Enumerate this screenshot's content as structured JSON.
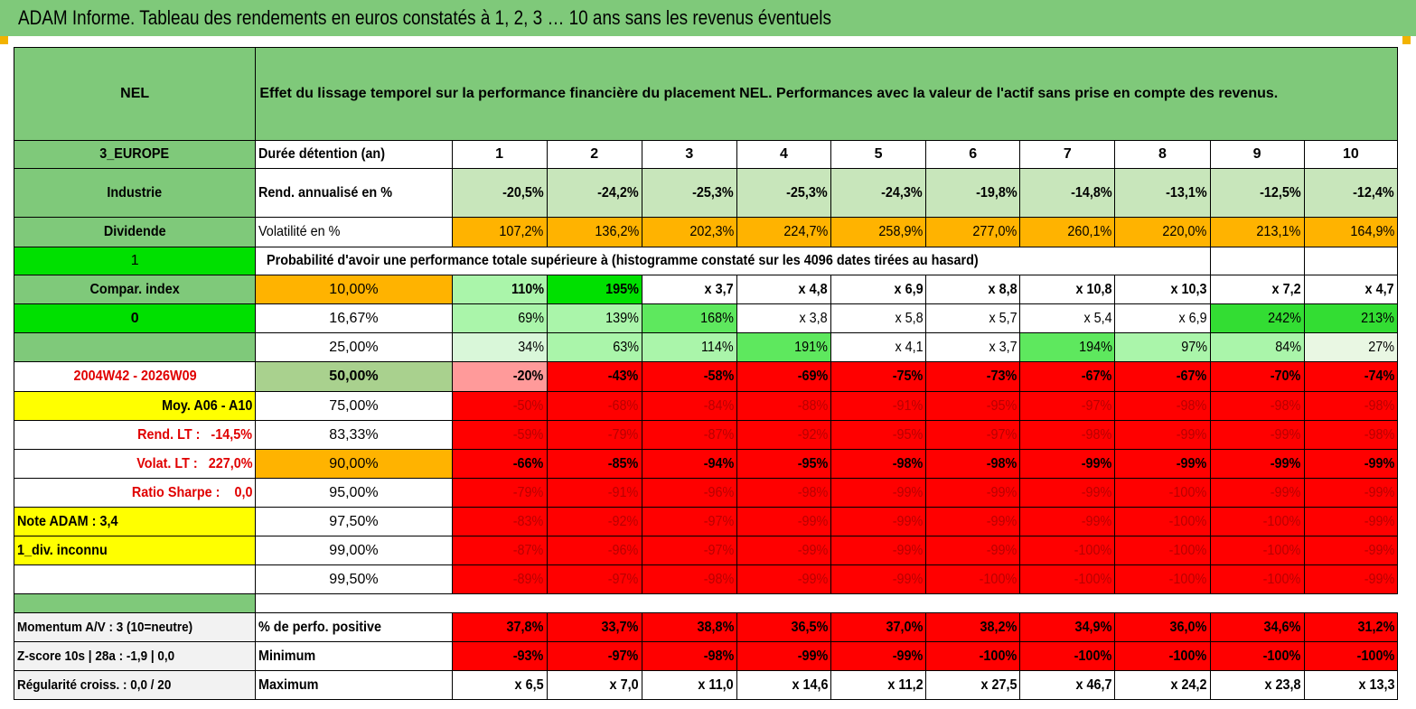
{
  "title": "ADAM Informe. Tableau des rendements en euros constatés à 1, 2, 3 … 10 ans sans les revenus éventuels",
  "header": {
    "code": "NEL",
    "description": "Effet du lissage temporel sur la performance financière du placement NEL. Performances avec la valeur de l'actif sans prise en compte des revenus."
  },
  "side": {
    "region": "3_EUROPE",
    "sector": "Industrie",
    "type": "Dividende",
    "flag1": "1",
    "compar": "Compar. index",
    "flag0": "0",
    "period": "2004W42 - 2026W09",
    "moy": "Moy. A06 - A10",
    "rend_lt": "Rend. LT :   -14,5%",
    "volat_lt": "Volat. LT :   227,0%",
    "sharpe": "Ratio Sharpe :    0,0",
    "note": "Note ADAM : 3,4",
    "div": "1_div. inconnu"
  },
  "labels": {
    "duree": "Durée détention (an)",
    "rend": "Rend. annualisé en %",
    "vol": "Volatilité en %",
    "proba": "Probabilité d'avoir une performance totale supérieure à (histogramme constaté sur les 4096 dates tirées au hasard)"
  },
  "years": [
    "1",
    "2",
    "3",
    "4",
    "5",
    "6",
    "7",
    "8",
    "9",
    "10"
  ],
  "rend": [
    "-20,5%",
    "-24,2%",
    "-25,3%",
    "-25,3%",
    "-24,3%",
    "-19,8%",
    "-14,8%",
    "-13,1%",
    "-12,5%",
    "-12,4%"
  ],
  "vol": [
    "107,2%",
    "136,2%",
    "202,3%",
    "224,7%",
    "258,9%",
    "277,0%",
    "260,1%",
    "220,0%",
    "213,1%",
    "164,9%"
  ],
  "pct_rows": [
    {
      "p": "10,00%",
      "v": [
        "110%",
        "195%",
        "x 3,7",
        "x 4,8",
        "x 6,9",
        "x 8,8",
        "x 10,8",
        "x 10,3",
        "x 7,2",
        "x 4,7"
      ]
    },
    {
      "p": "16,67%",
      "v": [
        "69%",
        "139%",
        "168%",
        "x 3,8",
        "x 5,8",
        "x 5,7",
        "x 5,4",
        "x 6,9",
        "242%",
        "213%"
      ]
    },
    {
      "p": "25,00%",
      "v": [
        "34%",
        "63%",
        "114%",
        "191%",
        "x 4,1",
        "x 3,7",
        "194%",
        "97%",
        "84%",
        "27%"
      ]
    },
    {
      "p": "50,00%",
      "v": [
        "-20%",
        "-43%",
        "-58%",
        "-69%",
        "-75%",
        "-73%",
        "-67%",
        "-67%",
        "-70%",
        "-74%"
      ]
    },
    {
      "p": "75,00%",
      "v": [
        "-50%",
        "-68%",
        "-84%",
        "-88%",
        "-91%",
        "-95%",
        "-97%",
        "-98%",
        "-98%",
        "-98%"
      ]
    },
    {
      "p": "83,33%",
      "v": [
        "-59%",
        "-79%",
        "-87%",
        "-92%",
        "-95%",
        "-97%",
        "-98%",
        "-99%",
        "-99%",
        "-98%"
      ]
    },
    {
      "p": "90,00%",
      "v": [
        "-66%",
        "-85%",
        "-94%",
        "-95%",
        "-98%",
        "-98%",
        "-99%",
        "-99%",
        "-99%",
        "-99%"
      ]
    },
    {
      "p": "95,00%",
      "v": [
        "-79%",
        "-91%",
        "-96%",
        "-98%",
        "-99%",
        "-99%",
        "-99%",
        "-100%",
        "-99%",
        "-99%"
      ]
    },
    {
      "p": "97,50%",
      "v": [
        "-83%",
        "-92%",
        "-97%",
        "-99%",
        "-99%",
        "-99%",
        "-99%",
        "-100%",
        "-100%",
        "-99%"
      ]
    },
    {
      "p": "99,00%",
      "v": [
        "-87%",
        "-96%",
        "-97%",
        "-99%",
        "-99%",
        "-99%",
        "-100%",
        "-100%",
        "-100%",
        "-99%"
      ]
    },
    {
      "p": "99,50%",
      "v": [
        "-89%",
        "-97%",
        "-98%",
        "-99%",
        "-99%",
        "-100%",
        "-100%",
        "-100%",
        "-100%",
        "-99%"
      ]
    }
  ],
  "bottom": [
    {
      "left": "Momentum A/V : 3 (10=neutre)",
      "label": "% de perfo. positive",
      "v": [
        "37,8%",
        "33,7%",
        "38,8%",
        "36,5%",
        "37,0%",
        "38,2%",
        "34,9%",
        "36,0%",
        "34,6%",
        "31,2%"
      ]
    },
    {
      "left": "Z-score 10s | 28a : -1,9 | 0,0",
      "label": "Minimum",
      "v": [
        "-93%",
        "-97%",
        "-98%",
        "-99%",
        "-99%",
        "-100%",
        "-100%",
        "-100%",
        "-100%",
        "-100%"
      ]
    },
    {
      "left": "Régularité croiss. : 0,0 / 20",
      "label": "Maximum",
      "v": [
        "x 6,5",
        "x 7,0",
        "x 11,0",
        "x 14,6",
        "x 11,2",
        "x 27,5",
        "x 46,7",
        "x 24,2",
        "x 23,8",
        "x 13,3"
      ]
    }
  ],
  "colors": {
    "header_green": "#7fc97a",
    "red": "#ff0000",
    "orange": "#ffb300",
    "yellow": "#ffff00"
  }
}
